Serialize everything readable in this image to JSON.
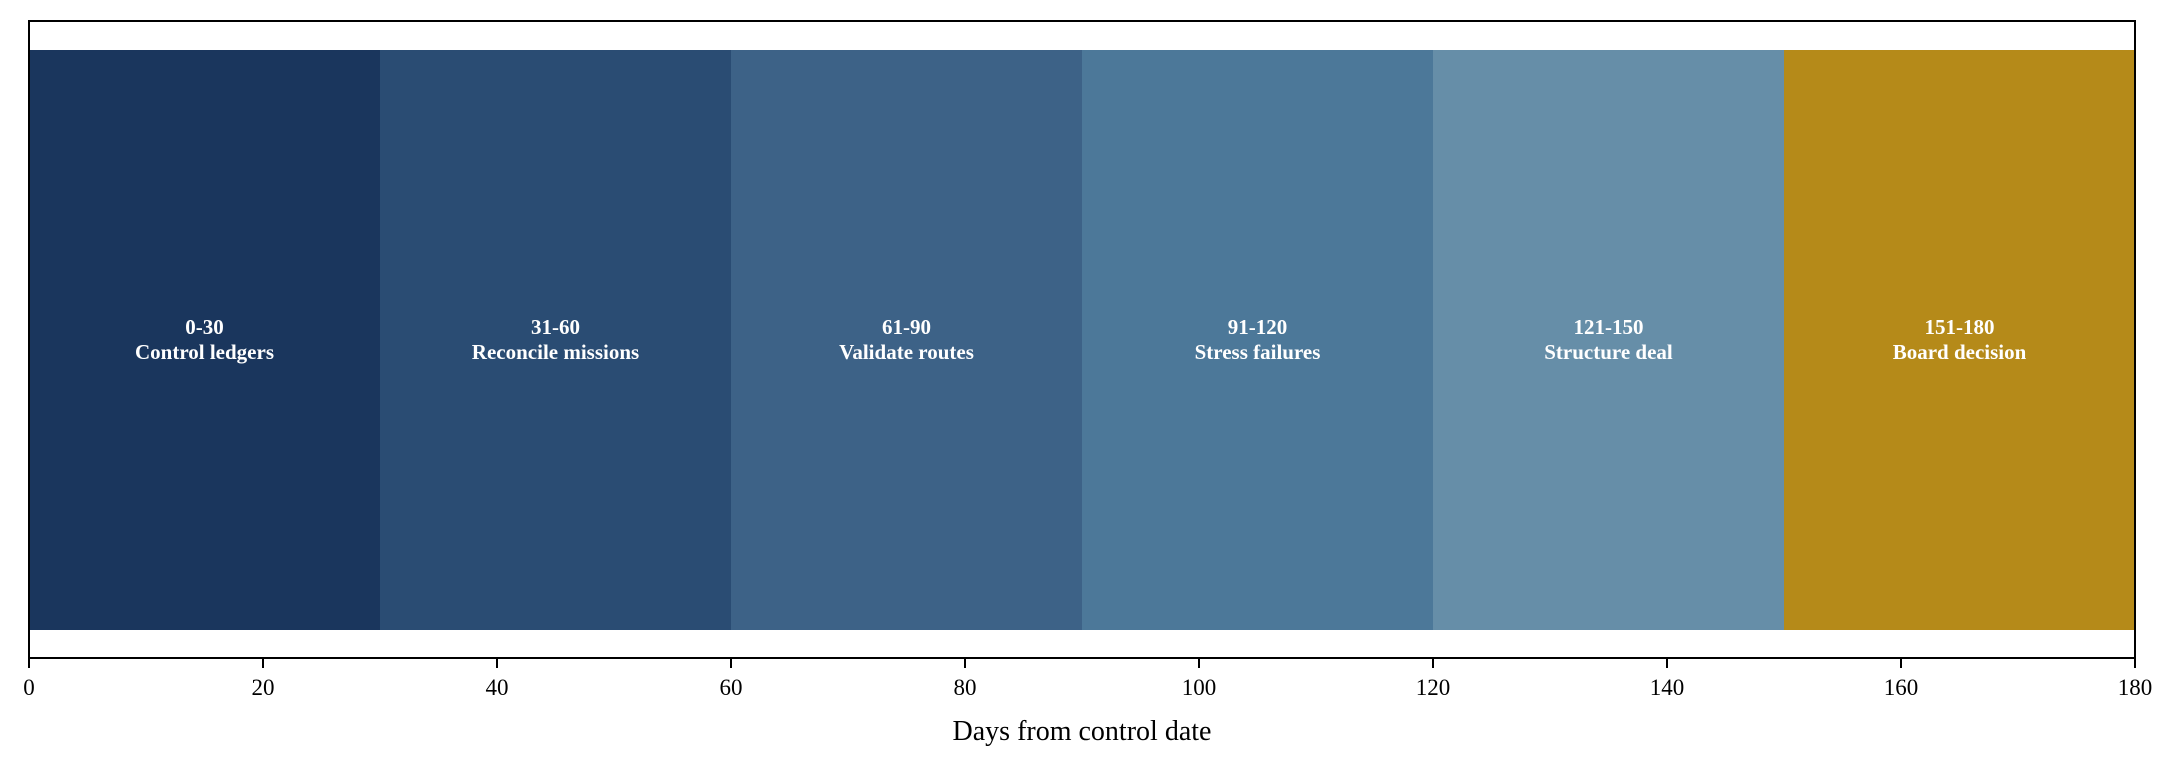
{
  "chart_data": {
    "type": "bar",
    "orientation": "horizontal-segments",
    "title": "",
    "xlabel": "Days from control date",
    "ylabel": "",
    "xlim": [
      0,
      180
    ],
    "xticks": [
      0,
      20,
      40,
      60,
      80,
      100,
      120,
      140,
      160,
      180
    ],
    "grid": false,
    "segments": [
      {
        "range_label": "0-30",
        "name": "Control ledgers",
        "start": 0,
        "end": 30,
        "color": "#1a365d"
      },
      {
        "range_label": "31-60",
        "name": "Reconcile missions",
        "start": 30,
        "end": 60,
        "color": "#2a4c73"
      },
      {
        "range_label": "61-90",
        "name": "Validate routes",
        "start": 60,
        "end": 90,
        "color": "#3d6287"
      },
      {
        "range_label": "91-120",
        "name": "Stress failures",
        "start": 90,
        "end": 120,
        "color": "#4c7899"
      },
      {
        "range_label": "121-150",
        "name": "Structure deal",
        "start": 120,
        "end": 150,
        "color": "#668ea8"
      },
      {
        "range_label": "151-180",
        "name": "Board decision",
        "start": 150,
        "end": 180,
        "color": "#b58a19"
      }
    ]
  }
}
